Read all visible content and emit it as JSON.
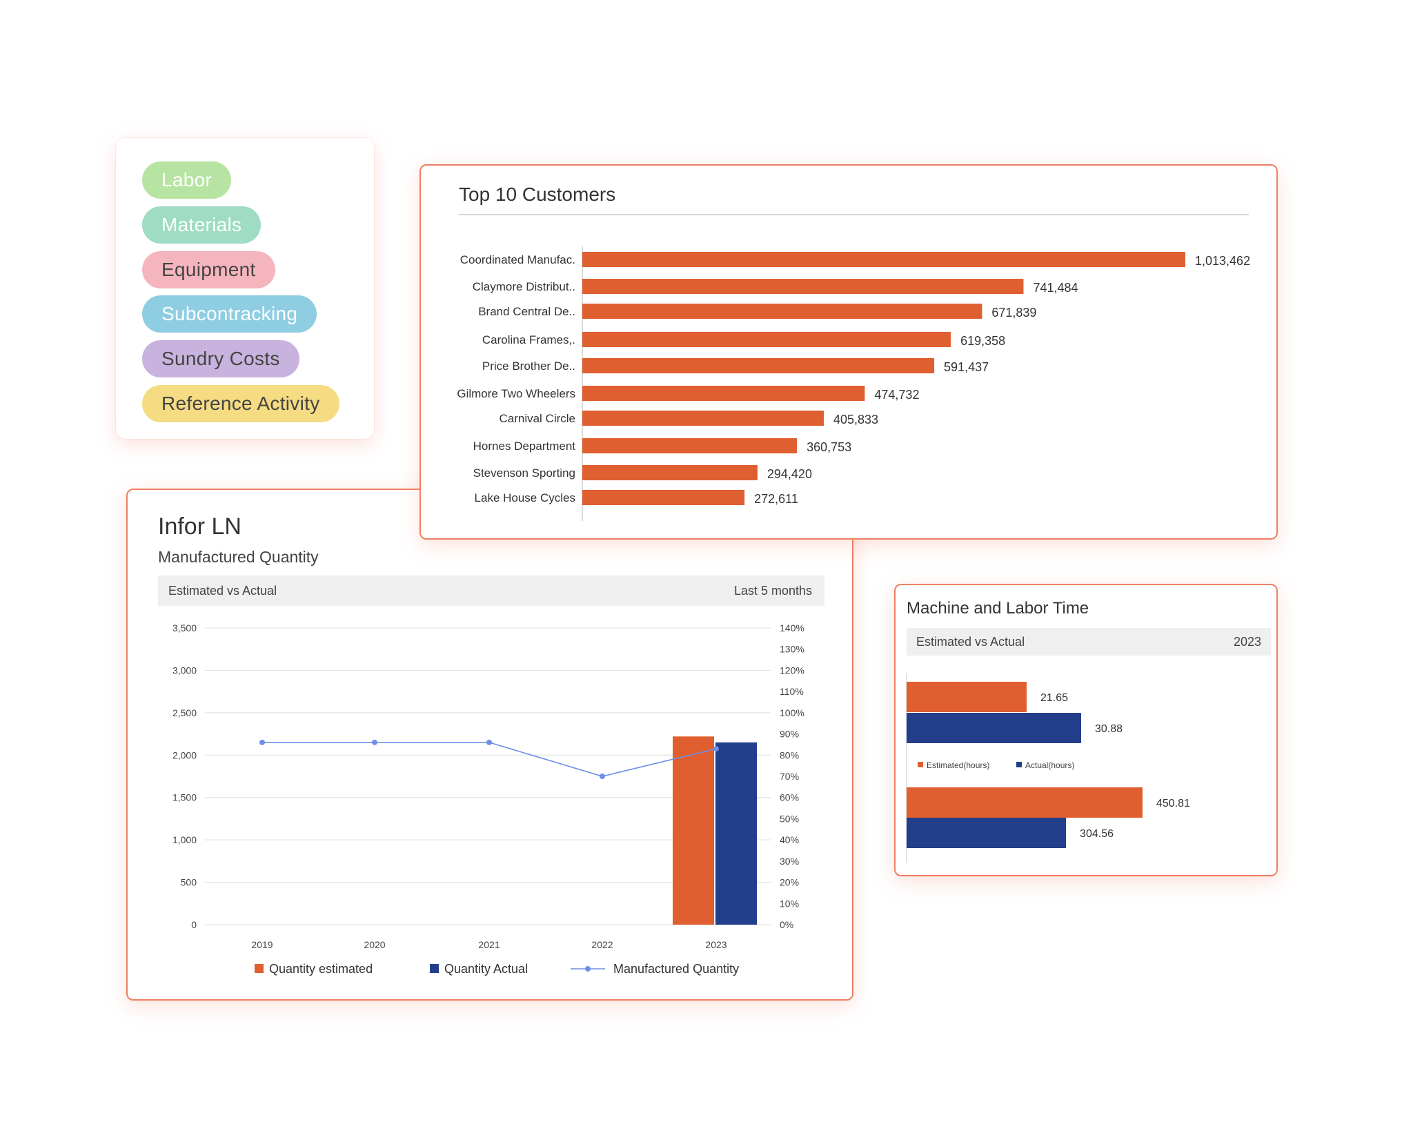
{
  "tags": [
    {
      "label": "Labor",
      "bg": "#b7e4a2",
      "fg": "#ffffff"
    },
    {
      "label": "Materials",
      "bg": "#9fdcc4",
      "fg": "#ffffff"
    },
    {
      "label": "Equipment",
      "bg": "#f4b5bf",
      "fg": "#444444"
    },
    {
      "label": "Subcontracking",
      "bg": "#8fcde2",
      "fg": "#ffffff"
    },
    {
      "label": "Sundry Costs",
      "bg": "#c7b3de",
      "fg": "#444444"
    },
    {
      "label": "Reference Activity",
      "bg": "#f5dc83",
      "fg": "#444444"
    }
  ],
  "colors": {
    "orange": "#e05f30",
    "navy": "#233e8b",
    "line": "#6d8fe6",
    "accent_border": "#ef7f62"
  },
  "top_customers": {
    "title": "Top 10 Customers"
  },
  "infor": {
    "title": "Infor LN",
    "subtitle": "Manufactured Quantity",
    "bar_left": "Estimated vs Actual",
    "bar_right": "Last 5 months"
  },
  "machine_labor": {
    "title": "Machine and Labor Time",
    "bar_left": "Estimated vs Actual",
    "bar_right": "2023"
  },
  "chart_data": [
    {
      "id": "top-customers",
      "type": "bar",
      "orientation": "horizontal",
      "title": "Top 10 Customers",
      "categories": [
        "Coordinated Manufac.",
        "Claymore Distribut..",
        "Brand Central De..",
        "Carolina Frames,.",
        "Price Brother De..",
        "Gilmore Two Wheelers",
        "Carnival Circle",
        "Hornes Department",
        "Stevenson Sporting",
        "Lake House Cycles"
      ],
      "values": [
        1013462,
        741484,
        671839,
        619358,
        591437,
        474732,
        405833,
        360753,
        294420,
        272611
      ],
      "value_labels": [
        "1,013,462",
        "741,484",
        "671,839",
        "619,358",
        "591,437",
        "474,732",
        "405,833",
        "360,753",
        "294,420",
        "272,611"
      ],
      "color": "#e05f30"
    },
    {
      "id": "manufactured-quantity",
      "type": "bar",
      "categories": [
        "2019",
        "2020",
        "2021",
        "2022",
        "2023"
      ],
      "series": [
        {
          "name": "Quantity estimated",
          "values": [
            0,
            0,
            0,
            0,
            2220
          ],
          "color": "#e05f30",
          "axis": "left"
        },
        {
          "name": "Quantity Actual",
          "values": [
            0,
            0,
            0,
            0,
            2150
          ],
          "color": "#233e8b",
          "axis": "left"
        },
        {
          "name": "Manufactured Quantity",
          "type": "line",
          "values": [
            86,
            86,
            86,
            70,
            83
          ],
          "color": "#6d8fe6",
          "axis": "right"
        }
      ],
      "y_left": {
        "min": 0,
        "max": 3500,
        "ticks": [
          "0",
          "500",
          "1,000",
          "1,500",
          "2,000",
          "2,500",
          "3,000",
          "3,500"
        ]
      },
      "y_right": {
        "ticks": [
          {
            "v": 0,
            "label": "0%"
          },
          {
            "v": 10,
            "label": "10%"
          },
          {
            "v": 20,
            "label": "20%"
          },
          {
            "v": 30,
            "label": "30%"
          },
          {
            "v": 40,
            "label": "40%"
          },
          {
            "v": 50,
            "label": "50%"
          },
          {
            "v": 60,
            "label": "60%"
          },
          {
            "v": 70,
            "label": "70%"
          },
          {
            "v": 80,
            "label": "80%"
          },
          {
            "v": 90,
            "label": "90%"
          },
          {
            "v": 100,
            "label": "100%"
          },
          {
            "v": 110,
            "label": "110%"
          },
          {
            "v": 120,
            "label": "120%"
          },
          {
            "v": 130,
            "label": "130%"
          },
          {
            "v": 140,
            "label": "140%"
          }
        ]
      },
      "grid": true,
      "legend": "bottom"
    },
    {
      "id": "machine-labor-time",
      "type": "bar",
      "orientation": "horizontal",
      "groups": [
        "",
        ""
      ],
      "series": [
        {
          "name": "Estimated(hours)",
          "values": [
            21.65,
            450.81
          ],
          "labels": [
            "21.65",
            "450.81"
          ],
          "color": "#e05f30"
        },
        {
          "name": "Actual(hours)",
          "values": [
            30.88,
            304.56
          ],
          "labels": [
            "30.88",
            "304.56"
          ],
          "color": "#233e8b"
        }
      ],
      "legend": "middle"
    }
  ]
}
